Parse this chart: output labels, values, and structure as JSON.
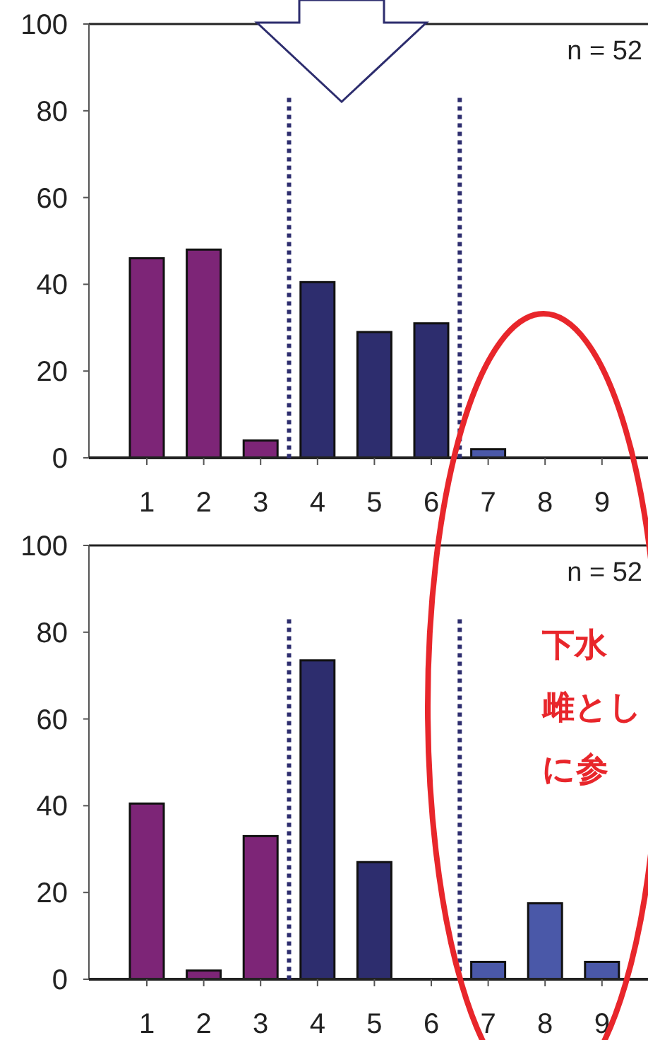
{
  "chart_data": [
    {
      "type": "bar",
      "categories": [
        "1",
        "2",
        "3",
        "4",
        "5",
        "6",
        "7",
        "8",
        "9"
      ],
      "values": [
        46,
        48,
        4,
        40.5,
        29,
        31,
        2,
        0,
        0
      ],
      "colors": [
        "#7d2577",
        "#7d2577",
        "#7d2577",
        "#2d2d6e",
        "#2d2d6e",
        "#2d2d6e",
        "#4a58a8",
        "#4a58a8",
        "#4a58a8"
      ],
      "ylim": [
        0,
        100
      ],
      "yticks": [
        0,
        20,
        40,
        60,
        80,
        100
      ],
      "annotations": [
        "n = 52"
      ]
    },
    {
      "type": "bar",
      "categories": [
        "1",
        "2",
        "3",
        "4",
        "5",
        "6",
        "7",
        "8",
        "9"
      ],
      "values": [
        40.5,
        2,
        33,
        73.5,
        27,
        0,
        4,
        17.5,
        4
      ],
      "colors": [
        "#7d2577",
        "#7d2577",
        "#7d2577",
        "#2d2d6e",
        "#2d2d6e",
        "#2d2d6e",
        "#4a58a8",
        "#4a58a8",
        "#4a58a8"
      ],
      "ylim": [
        0,
        100
      ],
      "yticks": [
        0,
        20,
        40,
        60,
        80,
        100
      ],
      "annotations": [
        "n = 52",
        "下水",
        "雌とし",
        "に参"
      ]
    }
  ]
}
